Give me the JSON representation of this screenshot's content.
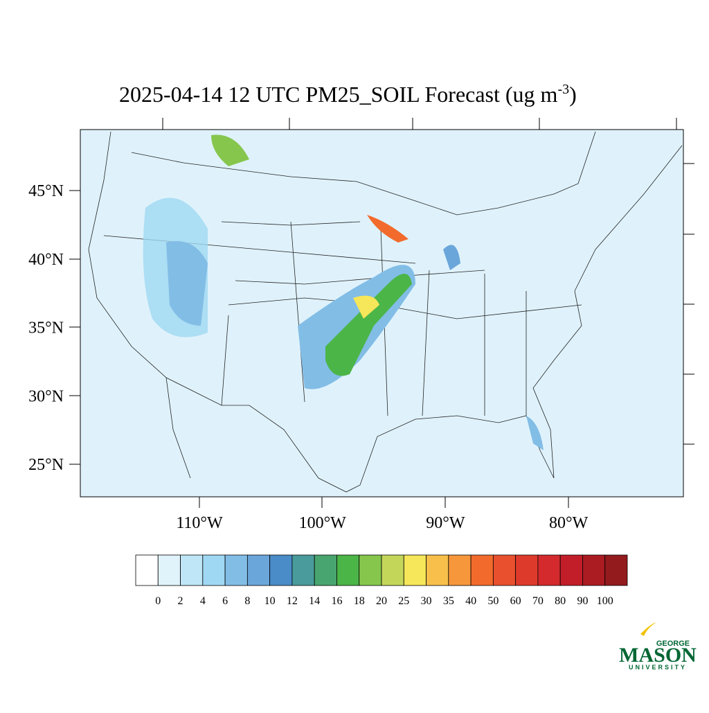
{
  "header": {
    "title": "2025-04-14 12 UTC PM25_SOIL Forecast (ug m",
    "title_superscript": "-3",
    "title_end": ")"
  },
  "map": {
    "lat_labels": [
      "45°N",
      "40°N",
      "35°N",
      "30°N",
      "25°N"
    ],
    "lon_labels": [
      "110°W",
      "100°W",
      "90°W",
      "80°W"
    ]
  },
  "colorbar": {
    "levels": [
      0,
      2,
      4,
      6,
      8,
      10,
      12,
      14,
      16,
      18,
      20,
      25,
      30,
      35,
      40,
      50,
      60,
      70,
      80,
      90,
      100
    ],
    "colors": [
      "#ffffff",
      "#e0f3fb",
      "#bfe6f7",
      "#9fd8f3",
      "#82bde6",
      "#6aa6da",
      "#4a8cc8",
      "#4a9b9b",
      "#48a56f",
      "#4bb548",
      "#86c64d",
      "#c4d65a",
      "#f6e65a",
      "#f8c04a",
      "#f6973c",
      "#f26b2c",
      "#e9502d",
      "#de3a2b",
      "#d42a2d",
      "#c21e29",
      "#aa1b22",
      "#931a1d"
    ]
  },
  "logo": {
    "top": "GEORGE",
    "main": "MASON",
    "bottom": "UNIVERSITY"
  }
}
